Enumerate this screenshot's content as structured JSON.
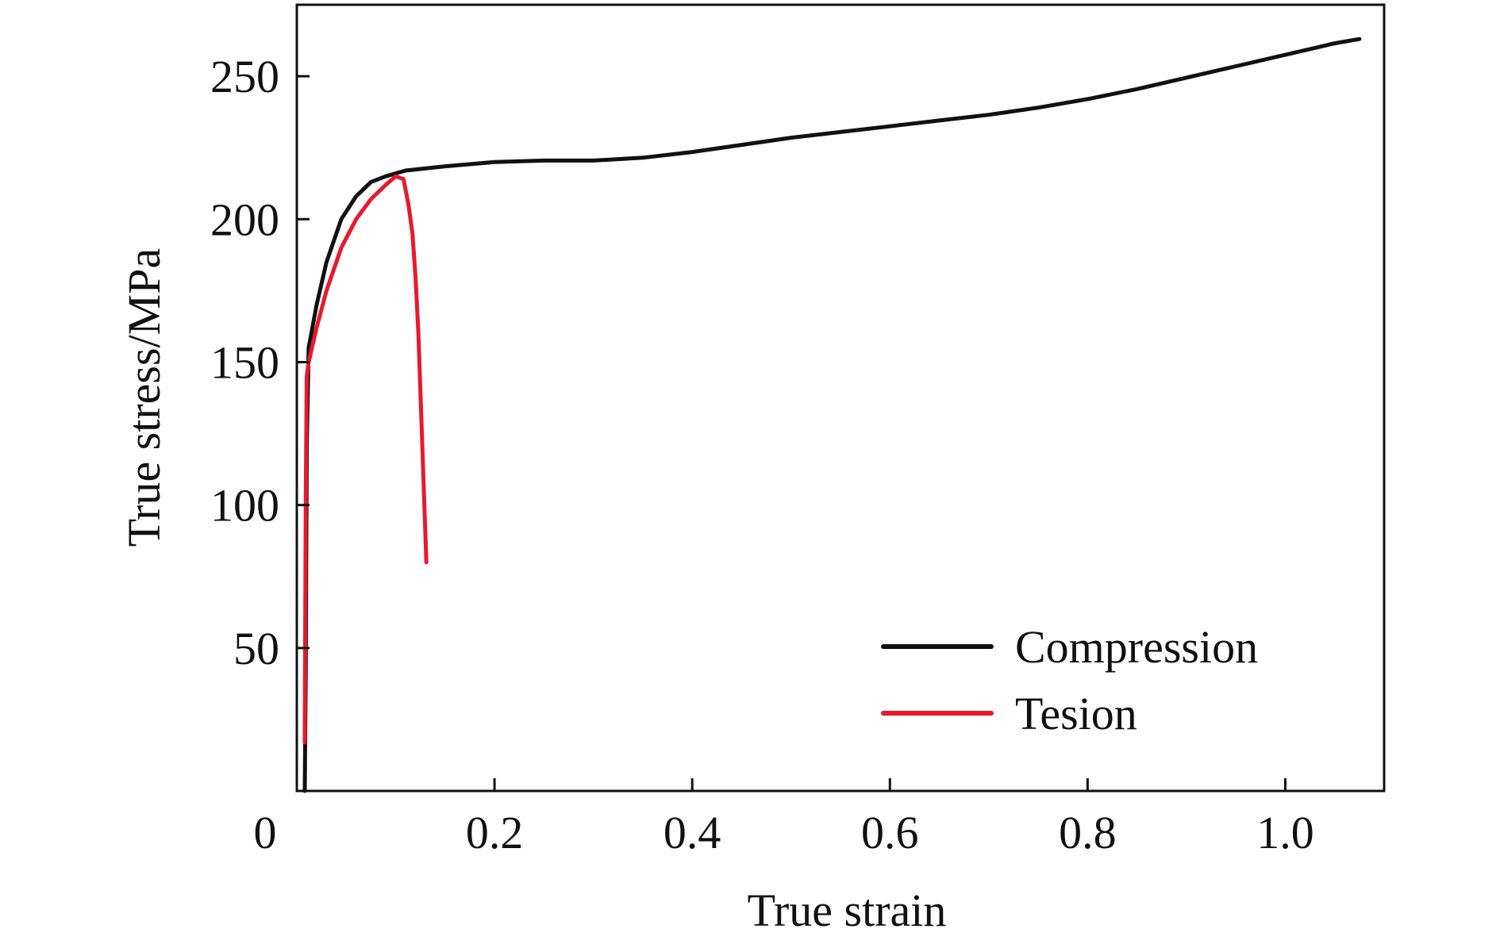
{
  "chart_data": {
    "type": "line",
    "title": "",
    "xlabel": "True strain",
    "ylabel": "True stress/MPa",
    "xlim": [
      0,
      1.1
    ],
    "ylim": [
      0,
      275
    ],
    "x_origin_label": "0",
    "x_ticks": [
      0.2,
      0.4,
      0.6,
      0.8,
      1.0
    ],
    "x_tick_labels": [
      "0.2",
      "0.4",
      "0.6",
      "0.8",
      "1.0"
    ],
    "y_ticks": [
      50,
      100,
      150,
      200,
      250
    ],
    "y_tick_labels": [
      "50",
      "100",
      "150",
      "200",
      "250"
    ],
    "grid": false,
    "legend_position": "bottom-right",
    "series": [
      {
        "name": "Compression",
        "color": "#111111",
        "x": [
          0.008,
          0.009,
          0.01,
          0.012,
          0.02,
          0.03,
          0.045,
          0.06,
          0.075,
          0.09,
          0.11,
          0.15,
          0.2,
          0.25,
          0.3,
          0.35,
          0.4,
          0.45,
          0.5,
          0.55,
          0.6,
          0.65,
          0.7,
          0.75,
          0.8,
          0.85,
          0.9,
          0.95,
          1.0,
          1.05,
          1.075
        ],
        "values": [
          0,
          40,
          120,
          155,
          170,
          185,
          200,
          208,
          213,
          215,
          217,
          218.5,
          220,
          220.5,
          220.5,
          221.5,
          223.5,
          226,
          228.5,
          230.5,
          232.5,
          234.5,
          236.5,
          239,
          242,
          245.5,
          249.5,
          253.5,
          257.5,
          261.5,
          263
        ]
      },
      {
        "name": "Tesion",
        "color": "#e8192c",
        "x": [
          0.008,
          0.009,
          0.01,
          0.012,
          0.02,
          0.03,
          0.045,
          0.06,
          0.075,
          0.09,
          0.1,
          0.108,
          0.113,
          0.117,
          0.12,
          0.123,
          0.125,
          0.127,
          0.129,
          0.131
        ],
        "values": [
          17,
          100,
          145,
          150,
          162,
          175,
          190,
          200,
          207,
          212,
          215,
          214,
          205,
          195,
          180,
          160,
          140,
          120,
          100,
          80
        ]
      }
    ]
  }
}
